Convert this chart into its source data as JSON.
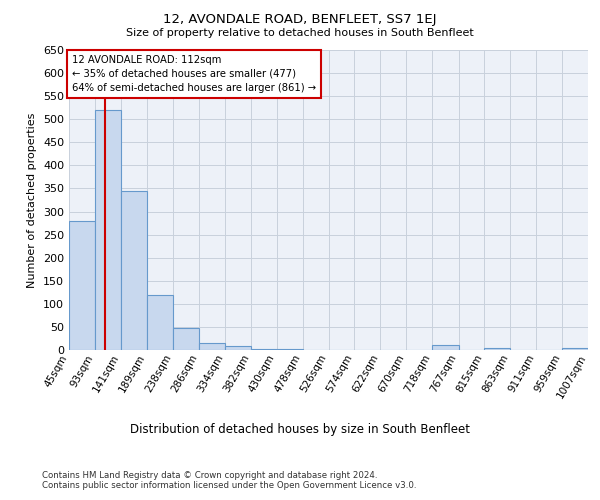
{
  "title": "12, AVONDALE ROAD, BENFLEET, SS7 1EJ",
  "subtitle": "Size of property relative to detached houses in South Benfleet",
  "xlabel": "Distribution of detached houses by size in South Benfleet",
  "ylabel": "Number of detached properties",
  "bin_edges": [
    45,
    93,
    141,
    189,
    238,
    286,
    334,
    382,
    430,
    478,
    526,
    574,
    622,
    670,
    718,
    767,
    815,
    863,
    911,
    959,
    1007
  ],
  "bar_heights": [
    280,
    520,
    345,
    120,
    48,
    15,
    8,
    2,
    2,
    1,
    1,
    0,
    0,
    0,
    10,
    0,
    5,
    0,
    0,
    5
  ],
  "bar_color": "#c8d8ee",
  "bar_edge_color": "#6699cc",
  "property_size": 112,
  "red_line_color": "#cc0000",
  "annotation_text": "12 AVONDALE ROAD: 112sqm\n← 35% of detached houses are smaller (477)\n64% of semi-detached houses are larger (861) →",
  "annotation_box_color": "#cc0000",
  "ylim": [
    0,
    650
  ],
  "yticks": [
    0,
    50,
    100,
    150,
    200,
    250,
    300,
    350,
    400,
    450,
    500,
    550,
    600,
    650
  ],
  "footer_text": "Contains HM Land Registry data © Crown copyright and database right 2024.\nContains public sector information licensed under the Open Government Licence v3.0.",
  "grid_color": "#c8d0dc",
  "background_color": "#edf1f8"
}
